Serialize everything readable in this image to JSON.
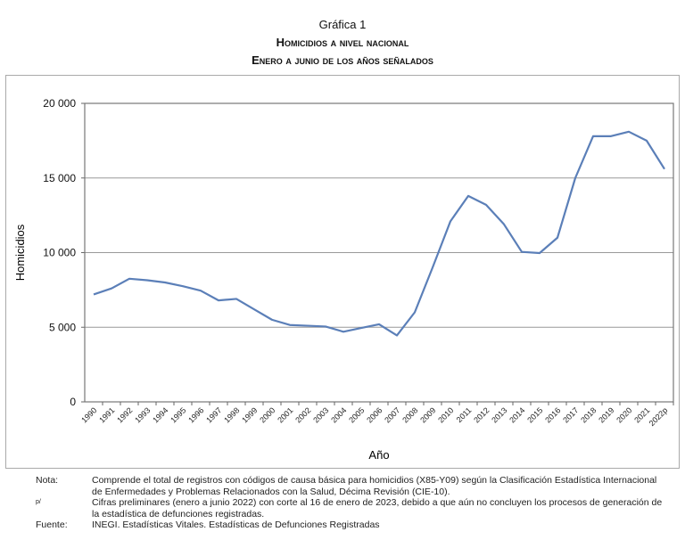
{
  "header": {
    "label": "Gráfica 1",
    "title": "Homicidios a nivel nacional",
    "subtitle": "Enero a junio de los años señalados"
  },
  "chart_data": {
    "type": "line",
    "title": "Homicidios a nivel nacional",
    "subtitle": "Enero a junio de los años señalados",
    "xlabel": "Año",
    "ylabel": "Homicidios",
    "ylim": [
      0,
      20000
    ],
    "yticks": [
      "0",
      "5 000",
      "10 000",
      "15 000",
      "20 000"
    ],
    "ytick_values": [
      0,
      5000,
      10000,
      15000,
      20000
    ],
    "grid": true,
    "line_color": "#5b7fb8",
    "categories": [
      "1990",
      "1991",
      "1992",
      "1993",
      "1994",
      "1995",
      "1996",
      "1997",
      "1998",
      "1999",
      "2000",
      "2001",
      "2002",
      "2003",
      "2004",
      "2005",
      "2006",
      "2007",
      "2008",
      "2009",
      "2010",
      "2011",
      "2012",
      "2013",
      "2014",
      "2015",
      "2016",
      "2017",
      "2018",
      "2019",
      "2020",
      "2021",
      "2022p"
    ],
    "values": [
      7200,
      7600,
      8250,
      8150,
      8000,
      7750,
      7450,
      6800,
      6900,
      6200,
      5500,
      5150,
      5100,
      5050,
      4700,
      4950,
      5200,
      4450,
      6000,
      9000,
      12100,
      13800,
      13200,
      11900,
      10050,
      9970,
      11000,
      15000,
      17800,
      17800,
      18100,
      17500,
      15600
    ]
  },
  "notes": {
    "nota_label": "Nota:",
    "nota_text": "Comprende el total de registros con códigos de causa básica para homicidios (X85-Y09) según la Clasificación Estadística Internacional de Enfermedades y Problemas Relacionados con la Salud, Décima Revisión (CIE-10).",
    "p_label": "p/",
    "p_text": "Cifras preliminares (enero a junio 2022) con corte al 16 de enero de 2023, debido a que aún no concluyen los procesos de generación de la estadística de defunciones registradas.",
    "fuente_label": "Fuente:",
    "fuente_text": "INEGI. Estadísticas Vitales. Estadísticas de Defunciones Registradas"
  }
}
